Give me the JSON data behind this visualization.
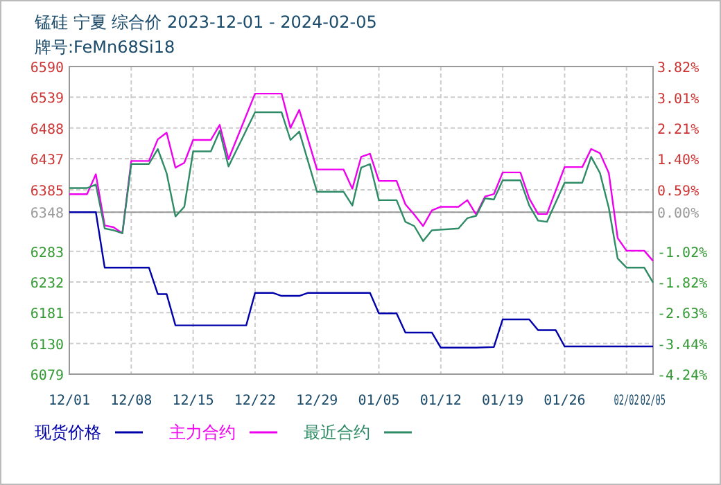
{
  "chart_data": {
    "type": "line",
    "title": "锰硅 宁夏 综合价 2023-12-01 - 2024-02-05",
    "subtitle": "牌号:FeMn68Si18",
    "xlim": [
      "2023-12-01",
      "2024-02-05"
    ],
    "xticks": [
      {
        "value": "2023-12-01",
        "label": "12/01"
      },
      {
        "value": "2023-12-08",
        "label": "12/08"
      },
      {
        "value": "2023-12-15",
        "label": "12/15"
      },
      {
        "value": "2023-12-22",
        "label": "12/22"
      },
      {
        "value": "2023-12-29",
        "label": "12/29"
      },
      {
        "value": "2024-01-05",
        "label": "01/05"
      },
      {
        "value": "2024-01-12",
        "label": "01/12"
      },
      {
        "value": "2024-01-19",
        "label": "01/19"
      },
      {
        "value": "2024-01-26",
        "label": "01/26"
      },
      {
        "value": "2024-02-02",
        "label": "02/02"
      },
      {
        "value": "2024-02-05",
        "label": "02/05"
      }
    ],
    "ylim": [
      6079,
      6590
    ],
    "yticks": [
      6079,
      6130,
      6181,
      6232,
      6283,
      6348,
      6385,
      6437,
      6488,
      6539,
      6590
    ],
    "y2lim": [
      -4.24,
      3.82
    ],
    "y2ticks": [
      {
        "value": -4.24,
        "label": "-4.24%"
      },
      {
        "value": -3.44,
        "label": "-3.44%"
      },
      {
        "value": -2.63,
        "label": "-2.63%"
      },
      {
        "value": -1.82,
        "label": "-1.82%"
      },
      {
        "value": -1.02,
        "label": "-1.02%"
      },
      {
        "value": 0,
        "label": "0.00%"
      },
      {
        "value": 0.59,
        "label": "0.59%"
      },
      {
        "value": 1.4,
        "label": "1.40%"
      },
      {
        "value": 2.21,
        "label": "2.21%"
      },
      {
        "value": 3.01,
        "label": "3.01%"
      },
      {
        "value": 3.82,
        "label": "3.82%"
      }
    ],
    "ref_lines": [
      {
        "axis": "y",
        "value": 6348,
        "color": "#999999",
        "line_style": "solid"
      }
    ],
    "grid": true,
    "legend": "bottom",
    "line_style": "solid",
    "series": [
      {
        "name": "现货价格",
        "color": "#0000aa",
        "x": [
          "2023-12-01",
          "2023-12-04",
          "2023-12-05",
          "2023-12-10",
          "2023-12-11",
          "2023-12-12",
          "2023-12-13",
          "2023-12-21",
          "2023-12-22",
          "2023-12-24",
          "2023-12-25",
          "2023-12-27",
          "2023-12-28",
          "2024-01-04",
          "2024-01-05",
          "2024-01-07",
          "2024-01-08",
          "2024-01-11",
          "2024-01-12",
          "2024-01-16",
          "2024-01-18",
          "2024-01-19",
          "2024-01-22",
          "2024-01-23",
          "2024-01-25",
          "2024-01-26",
          "2024-02-05"
        ],
        "values": [
          6348,
          6348,
          6256,
          6256,
          6212,
          6212,
          6160,
          6160,
          6214,
          6214,
          6209,
          6209,
          6214,
          6214,
          6180,
          6180,
          6148,
          6148,
          6123,
          6123,
          6124,
          6170,
          6170,
          6152,
          6152,
          6125,
          6125
        ]
      },
      {
        "name": "主力合约",
        "color": "#ee00ee",
        "x": [
          "2023-12-01",
          "2023-12-03",
          "2023-12-04",
          "2023-12-05",
          "2023-12-06",
          "2023-12-07",
          "2023-12-08",
          "2023-12-10",
          "2023-12-11",
          "2023-12-12",
          "2023-12-13",
          "2023-12-14",
          "2023-12-15",
          "2023-12-17",
          "2023-12-18",
          "2023-12-19",
          "2023-12-22",
          "2023-12-25",
          "2023-12-26",
          "2023-12-27",
          "2023-12-29",
          "2024-01-01",
          "2024-01-02",
          "2024-01-03",
          "2024-01-04",
          "2024-01-05",
          "2024-01-07",
          "2024-01-08",
          "2024-01-09",
          "2024-01-10",
          "2024-01-11",
          "2024-01-12",
          "2024-01-14",
          "2024-01-15",
          "2024-01-16",
          "2024-01-17",
          "2024-01-18",
          "2024-01-19",
          "2024-01-21",
          "2024-01-22",
          "2024-01-23",
          "2024-01-24",
          "2024-01-26",
          "2024-01-28",
          "2024-01-29",
          "2024-01-30",
          "2024-01-31",
          "2024-02-01",
          "2024-02-02",
          "2024-02-04",
          "2024-02-05"
        ],
        "values": [
          6378,
          6378,
          6411,
          6326,
          6323,
          6313,
          6433,
          6433,
          6469,
          6480,
          6422,
          6430,
          6468,
          6468,
          6493,
          6436,
          6545,
          6545,
          6488,
          6518,
          6419,
          6419,
          6387,
          6440,
          6445,
          6400,
          6400,
          6361,
          6344,
          6325,
          6351,
          6357,
          6357,
          6368,
          6344,
          6374,
          6378,
          6414,
          6414,
          6371,
          6345,
          6345,
          6423,
          6423,
          6453,
          6446,
          6413,
          6305,
          6284,
          6284,
          6267
        ]
      },
      {
        "name": "最近合约",
        "color": "#2e8b66",
        "x": [
          "2023-12-01",
          "2023-12-03",
          "2023-12-04",
          "2023-12-05",
          "2023-12-06",
          "2023-12-07",
          "2023-12-08",
          "2023-12-10",
          "2023-12-11",
          "2023-12-12",
          "2023-12-13",
          "2023-12-14",
          "2023-12-15",
          "2023-12-17",
          "2023-12-18",
          "2023-12-19",
          "2023-12-22",
          "2023-12-25",
          "2023-12-26",
          "2023-12-27",
          "2023-12-29",
          "2024-01-01",
          "2024-01-02",
          "2024-01-03",
          "2024-01-04",
          "2024-01-05",
          "2024-01-07",
          "2024-01-08",
          "2024-01-09",
          "2024-01-10",
          "2024-01-11",
          "2024-01-14",
          "2024-01-15",
          "2024-01-16",
          "2024-01-17",
          "2024-01-18",
          "2024-01-19",
          "2024-01-21",
          "2024-01-22",
          "2024-01-23",
          "2024-01-24",
          "2024-01-26",
          "2024-01-28",
          "2024-01-29",
          "2024-01-30",
          "2024-01-31",
          "2024-02-01",
          "2024-02-02",
          "2024-02-04",
          "2024-02-05"
        ],
        "values": [
          6388,
          6388,
          6394,
          6321,
          6318,
          6313,
          6428,
          6428,
          6453,
          6413,
          6341,
          6357,
          6449,
          6449,
          6483,
          6424,
          6514,
          6514,
          6468,
          6482,
          6382,
          6382,
          6359,
          6422,
          6428,
          6368,
          6368,
          6332,
          6325,
          6300,
          6318,
          6321,
          6338,
          6342,
          6371,
          6369,
          6401,
          6401,
          6359,
          6334,
          6332,
          6397,
          6397,
          6440,
          6413,
          6355,
          6271,
          6256,
          6256,
          6231
        ]
      }
    ]
  }
}
